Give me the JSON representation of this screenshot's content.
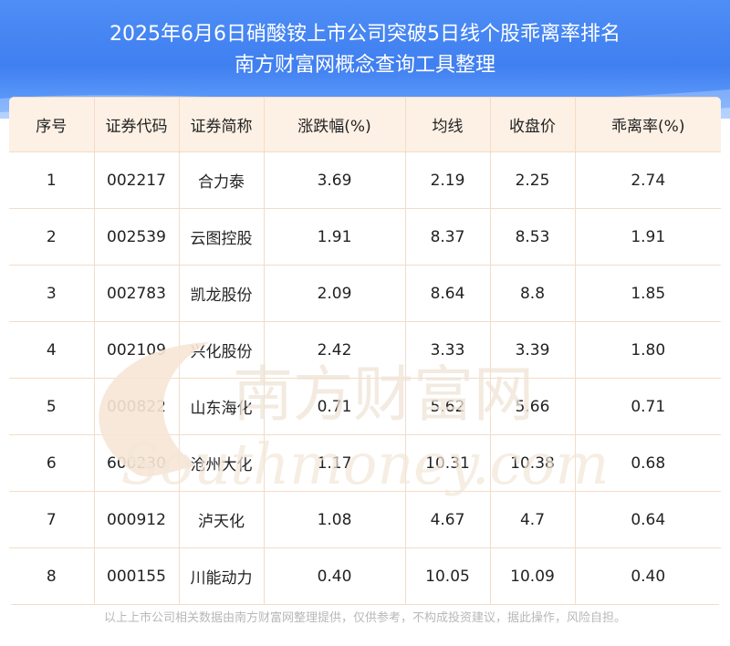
{
  "header": {
    "title_line1": "2025年6月6日硝酸铵上市公司突破5日线个股乖离率排名",
    "title_line2": "南方财富网概念查询工具整理"
  },
  "table": {
    "columns": [
      "序号",
      "证券代码",
      "证券简称",
      "涨跌幅(%)",
      "均线",
      "收盘价",
      "乖离率(%)"
    ],
    "rows": [
      [
        "1",
        "002217",
        "合力泰",
        "3.69",
        "2.19",
        "2.25",
        "2.74"
      ],
      [
        "2",
        "002539",
        "云图控股",
        "1.91",
        "8.37",
        "8.53",
        "1.91"
      ],
      [
        "3",
        "002783",
        "凯龙股份",
        "2.09",
        "8.64",
        "8.8",
        "1.85"
      ],
      [
        "4",
        "002109",
        "兴化股份",
        "2.42",
        "3.33",
        "3.39",
        "1.80"
      ],
      [
        "5",
        "000822",
        "山东海化",
        "0.71",
        "5.62",
        "5.66",
        "0.71"
      ],
      [
        "6",
        "600230",
        "沧州大化",
        "1.17",
        "10.31",
        "10.38",
        "0.68"
      ],
      [
        "7",
        "000912",
        "泸天化",
        "1.08",
        "4.67",
        "4.7",
        "0.64"
      ],
      [
        "8",
        "000155",
        "川能动力",
        "0.40",
        "10.05",
        "10.09",
        "0.40"
      ]
    ]
  },
  "watermark": {
    "cn": "南方财富网",
    "en": "Southmoney.com"
  },
  "footer": {
    "disclaimer": "以上上市公司相关数据由南方财富网整理提供，仅供参考，不构成投资建议，据此操作，风险自担。"
  },
  "colors": {
    "header_blue": "#3f7ff0",
    "table_header_bg": "#fdf1e5",
    "table_border": "#f3dcc8",
    "watermark": "#f0e2d4"
  }
}
